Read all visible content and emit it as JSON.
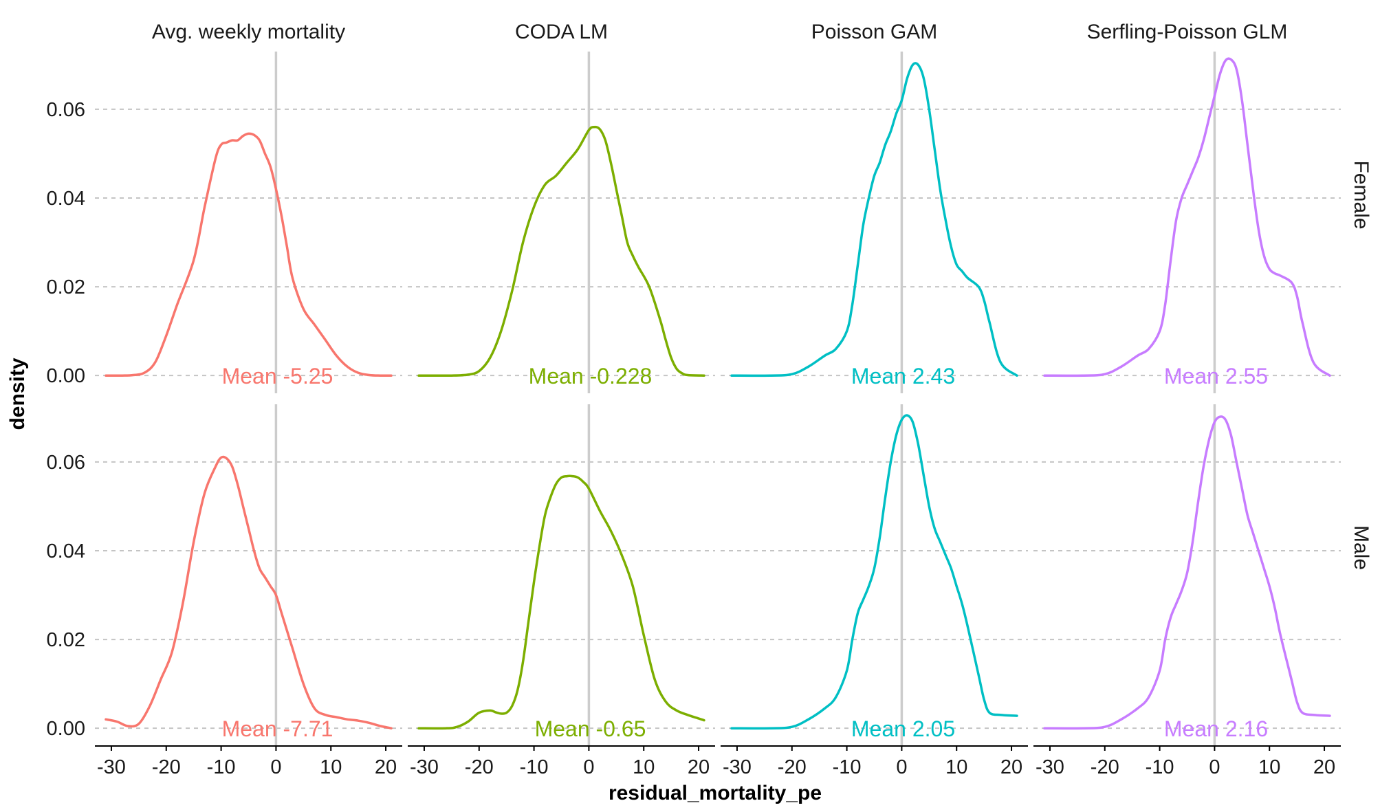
{
  "chart_data": {
    "type": "area",
    "kind": "faceted density plot",
    "xlabel": "residual_mortality_pe",
    "ylabel": "density",
    "xlim": [
      -33,
      23
    ],
    "ylim": [
      -0.004,
      0.073
    ],
    "x_ticks": [
      -30,
      -20,
      -10,
      0,
      10,
      20
    ],
    "x_tick_labels": [
      "-30",
      "-20",
      "-10",
      "0",
      "10",
      "20"
    ],
    "y_ticks": [
      0,
      0.02,
      0.04,
      0.06
    ],
    "y_tick_labels": [
      "0.00",
      "0.02",
      "0.04",
      "0.06"
    ],
    "reference_line_x": 0,
    "grid": "horizontal dashed major gridlines",
    "columns": [
      "Avg. weekly mortality",
      "CODA LM",
      "Poisson GAM",
      "Serfling-Poisson GLM"
    ],
    "rows": [
      "Female",
      "Male"
    ],
    "colors": {
      "Avg. weekly mortality": "#F8766D",
      "CODA LM": "#7CAE00",
      "Poisson GAM": "#00BFC4",
      "Serfling-Poisson GLM": "#C77CFF"
    },
    "panels": [
      {
        "column": "Avg. weekly mortality",
        "row": "Female",
        "mean_label": "Mean -5.25",
        "x": [
          -31,
          -28,
          -26,
          -24,
          -22,
          -20,
          -18,
          -15,
          -13,
          -11,
          -10,
          -9,
          -8,
          -7,
          -6,
          -5,
          -4,
          -3,
          -2,
          -1,
          0,
          1,
          2,
          3,
          5,
          7,
          9,
          11,
          13,
          15,
          17,
          19,
          21
        ],
        "y": [
          0,
          0,
          0.0001,
          0.0006,
          0.003,
          0.009,
          0.016,
          0.026,
          0.038,
          0.049,
          0.052,
          0.0525,
          0.053,
          0.053,
          0.054,
          0.0545,
          0.0542,
          0.053,
          0.05,
          0.047,
          0.042,
          0.036,
          0.029,
          0.022,
          0.015,
          0.0115,
          0.008,
          0.0045,
          0.002,
          0.0006,
          0.0001,
          0,
          0
        ]
      },
      {
        "column": "CODA LM",
        "row": "Female",
        "mean_label": "Mean -0.228",
        "x": [
          -31,
          -25,
          -22,
          -20,
          -18,
          -16,
          -14,
          -12,
          -10,
          -8,
          -6,
          -4,
          -2,
          0,
          1,
          2,
          3,
          4,
          5,
          6,
          7,
          8,
          9,
          11,
          13,
          14,
          15,
          16,
          17,
          18,
          21
        ],
        "y": [
          0,
          0,
          0.0002,
          0.001,
          0.004,
          0.01,
          0.019,
          0.03,
          0.038,
          0.043,
          0.045,
          0.048,
          0.051,
          0.0553,
          0.056,
          0.0555,
          0.053,
          0.048,
          0.042,
          0.036,
          0.03,
          0.027,
          0.0245,
          0.02,
          0.0125,
          0.008,
          0.004,
          0.0015,
          0.0005,
          0.0001,
          0
        ]
      },
      {
        "column": "Poisson GAM",
        "row": "Female",
        "mean_label": "Mean 2.43",
        "x": [
          -31,
          -24,
          -20,
          -17,
          -14,
          -12,
          -10,
          -9,
          -8,
          -7,
          -6,
          -5,
          -4,
          -3,
          -2,
          -1,
          0,
          1,
          2,
          3,
          4,
          5,
          6,
          7,
          8,
          9,
          10,
          11,
          12,
          14,
          15,
          16,
          18,
          21
        ],
        "y": [
          0,
          0,
          0.0003,
          0.002,
          0.0045,
          0.006,
          0.01,
          0.016,
          0.025,
          0.034,
          0.04,
          0.045,
          0.048,
          0.052,
          0.055,
          0.059,
          0.062,
          0.067,
          0.07,
          0.07,
          0.067,
          0.06,
          0.051,
          0.042,
          0.035,
          0.029,
          0.025,
          0.0235,
          0.022,
          0.02,
          0.017,
          0.012,
          0.003,
          0
        ]
      },
      {
        "column": "Serfling-Poisson GLM",
        "row": "Female",
        "mean_label": "Mean 2.55",
        "x": [
          -31,
          -24,
          -20,
          -17,
          -14,
          -12,
          -10,
          -9,
          -8,
          -7,
          -6,
          -5,
          -4,
          -3,
          -2,
          -1,
          0,
          1,
          2,
          3,
          4,
          5,
          6,
          7,
          8,
          9,
          10,
          11,
          12,
          14,
          15,
          16,
          18,
          21
        ],
        "y": [
          0,
          0,
          0.0003,
          0.002,
          0.0045,
          0.006,
          0.01,
          0.016,
          0.026,
          0.035,
          0.04,
          0.043,
          0.046,
          0.049,
          0.053,
          0.058,
          0.063,
          0.068,
          0.071,
          0.0712,
          0.069,
          0.062,
          0.052,
          0.042,
          0.033,
          0.027,
          0.024,
          0.023,
          0.0225,
          0.021,
          0.018,
          0.012,
          0.003,
          0
        ]
      },
      {
        "column": "Avg. weekly mortality",
        "row": "Male",
        "mean_label": "Mean -7.71",
        "x": [
          -31,
          -29,
          -27,
          -25,
          -23,
          -21,
          -19,
          -17,
          -15,
          -13,
          -11,
          -10,
          -9,
          -8,
          -7,
          -6,
          -5,
          -4,
          -3,
          -2,
          -1,
          0,
          1,
          3,
          5,
          7,
          9,
          11,
          13,
          15,
          17,
          19,
          21
        ],
        "y": [
          0.002,
          0.0015,
          0.0005,
          0.001,
          0.005,
          0.011,
          0.017,
          0.028,
          0.042,
          0.053,
          0.059,
          0.061,
          0.0608,
          0.059,
          0.055,
          0.05,
          0.045,
          0.04,
          0.036,
          0.034,
          0.032,
          0.03,
          0.026,
          0.018,
          0.01,
          0.0045,
          0.003,
          0.0025,
          0.002,
          0.0017,
          0.0012,
          0.0005,
          0
        ]
      },
      {
        "column": "CODA LM",
        "row": "Male",
        "mean_label": "Mean -0.65",
        "x": [
          -31,
          -26,
          -24,
          -22,
          -20,
          -18,
          -17,
          -16,
          -15,
          -14,
          -13,
          -12,
          -11,
          -10,
          -9,
          -8,
          -7,
          -6,
          -5,
          -4,
          -3,
          -2,
          -1,
          0,
          2,
          4,
          6,
          8,
          10,
          12,
          14,
          16,
          18,
          20,
          21
        ],
        "y": [
          0,
          0,
          0.0003,
          0.0015,
          0.0035,
          0.004,
          0.0036,
          0.0033,
          0.0035,
          0.005,
          0.0085,
          0.015,
          0.024,
          0.033,
          0.041,
          0.048,
          0.052,
          0.055,
          0.0565,
          0.0568,
          0.0568,
          0.0565,
          0.0555,
          0.054,
          0.049,
          0.0445,
          0.039,
          0.032,
          0.021,
          0.011,
          0.006,
          0.004,
          0.003,
          0.0022,
          0.0018
        ]
      },
      {
        "column": "Poisson GAM",
        "row": "Male",
        "mean_label": "Mean 2.05",
        "x": [
          -31,
          -24,
          -20,
          -17,
          -14,
          -12,
          -10,
          -9,
          -8,
          -7,
          -6,
          -5,
          -4,
          -3,
          -2,
          -1,
          0,
          1,
          2,
          3,
          4,
          5,
          6,
          7,
          8,
          9,
          10,
          11,
          12,
          14,
          15,
          16,
          18,
          21
        ],
        "y": [
          0,
          0,
          0.0003,
          0.002,
          0.0045,
          0.007,
          0.013,
          0.02,
          0.026,
          0.029,
          0.032,
          0.036,
          0.043,
          0.052,
          0.06,
          0.066,
          0.0695,
          0.0705,
          0.069,
          0.064,
          0.057,
          0.05,
          0.045,
          0.042,
          0.039,
          0.036,
          0.032,
          0.028,
          0.023,
          0.012,
          0.0065,
          0.0035,
          0.003,
          0.0028
        ]
      },
      {
        "column": "Serfling-Poisson GLM",
        "row": "Male",
        "mean_label": "Mean 2.16",
        "x": [
          -31,
          -24,
          -20,
          -17,
          -14,
          -12,
          -10,
          -9,
          -8,
          -7,
          -6,
          -5,
          -4,
          -3,
          -2,
          -1,
          0,
          1,
          2,
          3,
          4,
          5,
          6,
          7,
          8,
          9,
          10,
          11,
          12,
          14,
          15,
          16,
          18,
          21
        ],
        "y": [
          0,
          0,
          0.0003,
          0.002,
          0.0045,
          0.007,
          0.013,
          0.02,
          0.025,
          0.028,
          0.031,
          0.035,
          0.042,
          0.051,
          0.059,
          0.065,
          0.069,
          0.0702,
          0.0695,
          0.066,
          0.06,
          0.054,
          0.048,
          0.044,
          0.04,
          0.036,
          0.032,
          0.027,
          0.021,
          0.011,
          0.006,
          0.0035,
          0.003,
          0.0028
        ]
      }
    ]
  }
}
